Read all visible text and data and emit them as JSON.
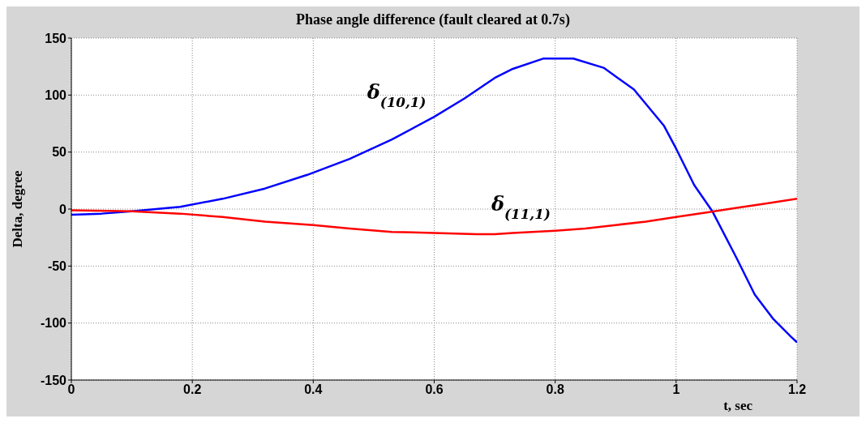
{
  "chart_data": {
    "type": "line",
    "title": "Phase angle difference (fault cleared at 0.7s)",
    "xlabel": "t, sec",
    "ylabel": "Delta, degree",
    "xlim": [
      0,
      1.2
    ],
    "xticks": [
      0,
      0.2,
      0.4,
      0.6,
      0.8,
      1,
      1.2
    ],
    "ylim": [
      -150,
      150
    ],
    "yticks": [
      -150,
      -100,
      -50,
      0,
      50,
      100,
      150
    ],
    "grid": true,
    "line_style": "solid",
    "series": [
      {
        "name": "δ$_{(10,1)}$",
        "color": "#0000ff",
        "x": [
          0,
          0.05,
          0.1,
          0.14,
          0.18,
          0.25,
          0.32,
          0.39,
          0.46,
          0.53,
          0.6,
          0.65,
          0.7,
          0.73,
          0.78,
          0.83,
          0.88,
          0.93,
          0.98,
          1.0,
          1.03,
          1.06,
          1.1,
          1.13,
          1.16,
          1.19,
          1.2
        ],
        "values": [
          -5,
          -4,
          -2,
          0,
          2,
          9,
          18,
          30,
          44,
          61,
          81,
          97,
          115,
          123,
          132,
          132,
          124,
          105,
          73,
          53,
          21,
          -2,
          -43,
          -75,
          -96,
          -112,
          -117
        ]
      },
      {
        "name": "δ$_{(11,1)}$",
        "color": "#ff0000",
        "x": [
          0,
          0.1,
          0.18,
          0.25,
          0.32,
          0.4,
          0.46,
          0.53,
          0.6,
          0.67,
          0.7,
          0.73,
          0.8,
          0.85,
          0.9,
          0.95,
          1.0,
          1.05,
          1.1,
          1.15,
          1.2
        ],
        "values": [
          -1,
          -2,
          -4,
          -7,
          -11,
          -14,
          -17,
          -20,
          -21,
          -22,
          -22,
          -21,
          -19,
          -17,
          -14,
          -11,
          -7,
          -3,
          1,
          5,
          9
        ]
      }
    ]
  }
}
